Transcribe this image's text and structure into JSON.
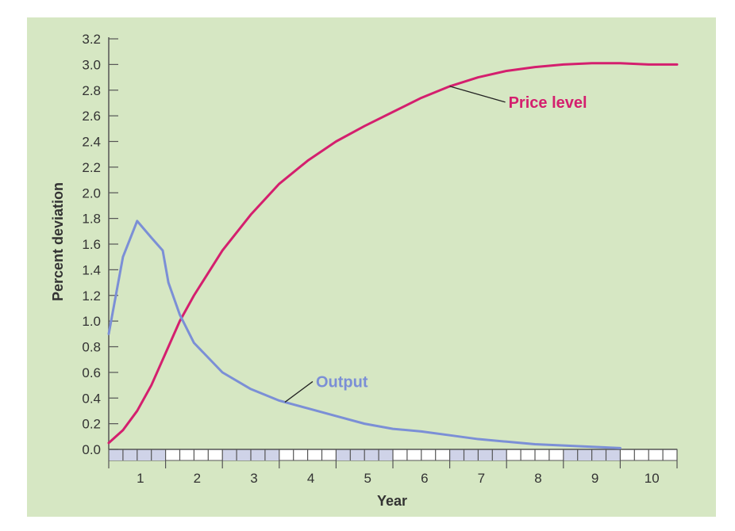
{
  "chart_data": {
    "type": "line",
    "title": "",
    "xlabel": "Year",
    "ylabel": "Percent deviation",
    "xlim": [
      0.5,
      10.5
    ],
    "ylim": [
      0,
      3.2
    ],
    "x_ticks": [
      1,
      2,
      3,
      4,
      5,
      6,
      7,
      8,
      9,
      10
    ],
    "y_ticks": [
      0.0,
      0.2,
      0.4,
      0.6,
      0.8,
      1.0,
      1.2,
      1.4,
      1.6,
      1.8,
      2.0,
      2.2,
      2.4,
      2.6,
      2.8,
      3.0,
      3.2
    ],
    "y_tick_labels": [
      "0.0",
      "0.2",
      "0.4",
      "0.6",
      "0.8",
      "1.0",
      "1.2",
      "1.4",
      "1.6",
      "1.8",
      "2.0",
      "2.2",
      "2.4",
      "2.6",
      "2.8",
      "3.0",
      "3.2"
    ],
    "grid": false,
    "background_color": "#d6e7c3",
    "series": [
      {
        "name": "Price level",
        "color": "#d41f6e",
        "x": [
          0.5,
          0.75,
          1.0,
          1.25,
          1.5,
          1.75,
          2.0,
          2.5,
          3.0,
          3.5,
          4.0,
          4.5,
          5.0,
          5.5,
          6.0,
          6.5,
          7.0,
          7.5,
          8.0,
          8.5,
          9.0,
          9.5,
          10.0,
          10.5
        ],
        "y": [
          0.05,
          0.15,
          0.3,
          0.5,
          0.75,
          1.0,
          1.2,
          1.55,
          1.83,
          2.07,
          2.25,
          2.4,
          2.52,
          2.63,
          2.74,
          2.83,
          2.9,
          2.95,
          2.98,
          3.0,
          3.01,
          3.01,
          3.0,
          3.0
        ]
      },
      {
        "name": "Output",
        "color": "#7b8fd6",
        "x": [
          0.5,
          0.75,
          1.0,
          1.25,
          1.45,
          1.55,
          1.75,
          2.0,
          2.5,
          3.0,
          3.5,
          4.0,
          4.5,
          5.0,
          5.5,
          6.0,
          6.5,
          7.0,
          7.5,
          8.0,
          8.5,
          9.0,
          9.5
        ],
        "y": [
          0.9,
          1.5,
          1.78,
          1.65,
          1.55,
          1.3,
          1.05,
          0.83,
          0.6,
          0.47,
          0.38,
          0.32,
          0.26,
          0.2,
          0.16,
          0.14,
          0.11,
          0.08,
          0.06,
          0.04,
          0.03,
          0.02,
          0.01
        ]
      }
    ],
    "annotations": [
      {
        "text": "Price level",
        "series": 0,
        "at_x": 6.5
      },
      {
        "text": "Output",
        "series": 1,
        "at_x": 3.6
      }
    ]
  }
}
